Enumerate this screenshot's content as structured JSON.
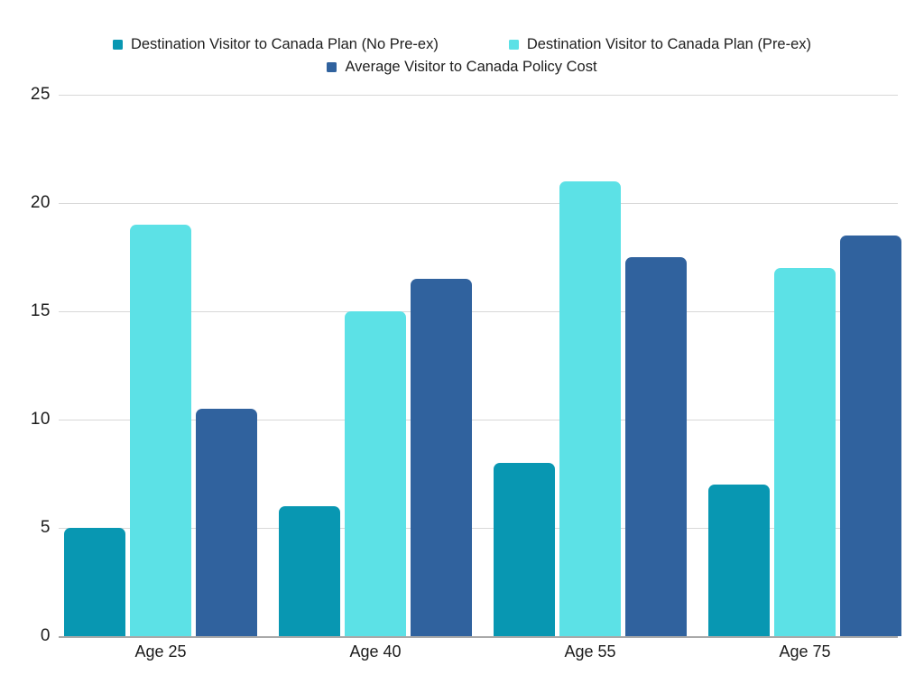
{
  "chart_data": {
    "type": "bar",
    "title": "",
    "categories": [
      "Age 25",
      "Age 40",
      "Age 55",
      "Age 75"
    ],
    "series": [
      {
        "name": "Destination Visitor to Canada Plan (No Pre-ex)",
        "color": "#0897B2",
        "values": [
          5,
          6,
          8,
          7
        ]
      },
      {
        "name": "Destination Visitor to Canada Plan (Pre-ex)",
        "color": "#5CE1E6",
        "values": [
          19,
          15,
          21,
          17
        ]
      },
      {
        "name": "Average Visitor to Canada Policy Cost",
        "color": "#30629E",
        "values": [
          10.5,
          16.5,
          17.5,
          18.5
        ]
      }
    ],
    "xlabel": "",
    "ylabel": "",
    "ylim": [
      0,
      25
    ],
    "yticks": [
      0,
      5,
      10,
      15,
      20,
      25
    ],
    "grid": "horizontal",
    "legend_position": "top"
  },
  "colors": {
    "background": "#FFFFFF",
    "gridline": "#D8D8D8",
    "axis_line": "#A9A9A9",
    "label_text": "#1C1C1C"
  }
}
